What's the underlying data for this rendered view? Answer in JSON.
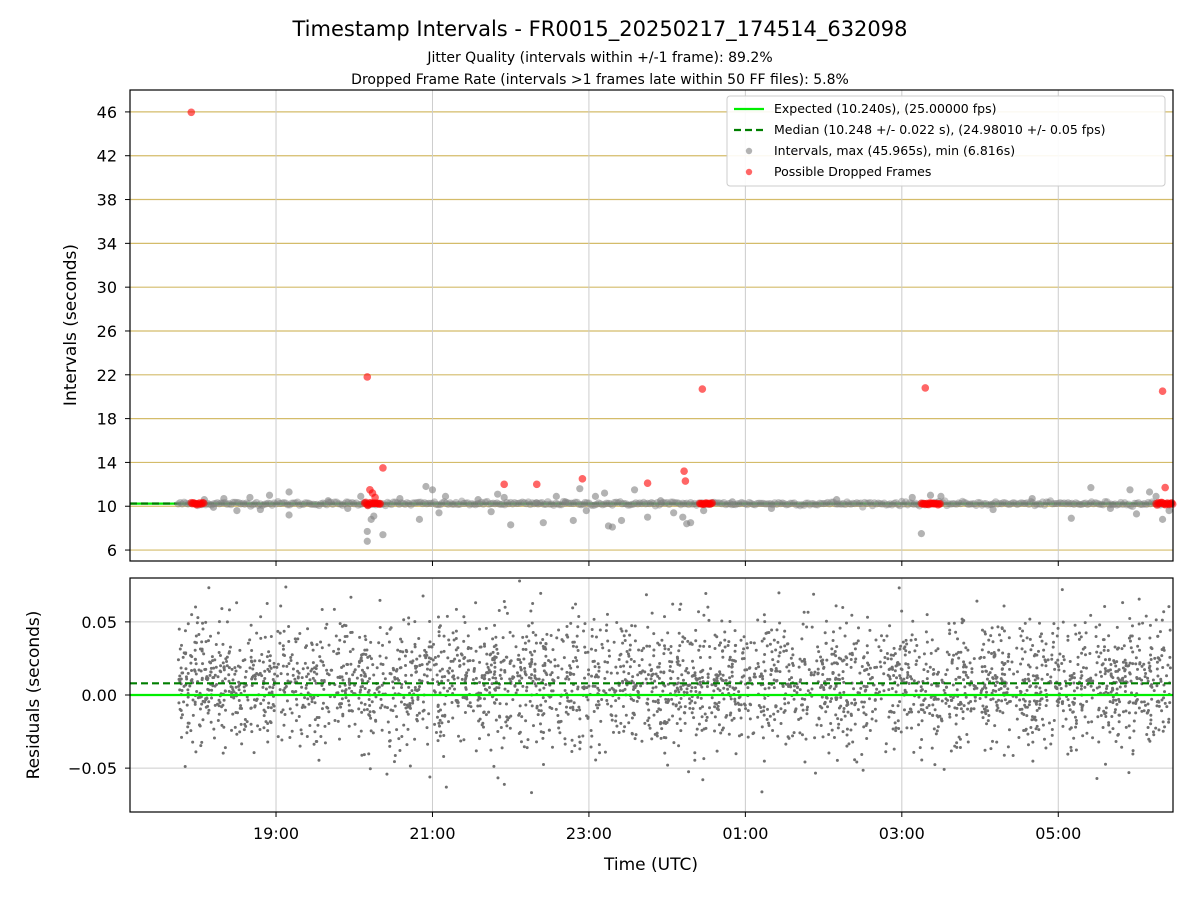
{
  "figure": {
    "title": "Timestamp Intervals - FR0015_20250217_174514_632098",
    "subtitle_1": "Jitter Quality (intervals within +/-1 frame): 89.2%",
    "subtitle_2": "Dropped Frame Rate (intervals >1 frames late within 50 FF files): 5.8%"
  },
  "chart_data": [
    {
      "type": "scatter",
      "name_hint": "top",
      "ylabel": "Intervals (seconds)",
      "xlabel": "",
      "xlim": [
        "17:08",
        "06:28"
      ],
      "ylim": [
        5,
        48
      ],
      "yticks": [
        6,
        10,
        14,
        18,
        22,
        26,
        30,
        34,
        38,
        42,
        46
      ],
      "xticks": [
        "19:00",
        "21:00",
        "23:00",
        "01:00",
        "03:00",
        "05:00"
      ],
      "grid": true,
      "legend_position": "top-right",
      "lines": [
        {
          "name": "Expected (10.240s), (25.00000 fps)",
          "y": 10.24,
          "color": "#00ee00",
          "style": "solid"
        },
        {
          "name": "Median (10.248 +/- 0.022 s), (24.98010 +/- 0.05 fps)",
          "y": 10.248,
          "color": "#007f00",
          "style": "dashed"
        }
      ],
      "series": [
        {
          "name": "Intervals, max (45.965s), min (6.816s)",
          "color": "#808080",
          "data_start": "17:45",
          "data_end": "06:28",
          "baseline": 10.24,
          "points": [
            [
              "18:05",
              10.6
            ],
            [
              "18:12",
              9.9
            ],
            [
              "18:20",
              10.7
            ],
            [
              "18:30",
              9.6
            ],
            [
              "18:40",
              10.8
            ],
            [
              "18:48",
              9.7
            ],
            [
              "18:55",
              11.0
            ],
            [
              "19:10",
              11.3
            ],
            [
              "19:10",
              9.2
            ],
            [
              "19:40",
              10.5
            ],
            [
              "19:55",
              9.8
            ],
            [
              "20:05",
              10.9
            ],
            [
              "20:10",
              7.7
            ],
            [
              "20:10",
              6.8
            ],
            [
              "20:13",
              8.8
            ],
            [
              "20:15",
              9.1
            ],
            [
              "20:22",
              7.4
            ],
            [
              "20:35",
              10.7
            ],
            [
              "20:50",
              8.8
            ],
            [
              "20:55",
              11.8
            ],
            [
              "21:00",
              11.5
            ],
            [
              "21:05",
              9.4
            ],
            [
              "21:10",
              10.9
            ],
            [
              "21:35",
              10.6
            ],
            [
              "21:45",
              9.5
            ],
            [
              "21:50",
              11.1
            ],
            [
              "21:55",
              10.8
            ],
            [
              "22:00",
              8.3
            ],
            [
              "22:20",
              10.3
            ],
            [
              "22:25",
              8.5
            ],
            [
              "22:35",
              10.9
            ],
            [
              "22:42",
              10.4
            ],
            [
              "22:48",
              8.7
            ],
            [
              "22:53",
              11.6
            ],
            [
              "22:58",
              9.6
            ],
            [
              "23:05",
              10.9
            ],
            [
              "23:12",
              11.2
            ],
            [
              "23:15",
              8.2
            ],
            [
              "23:18",
              8.1
            ],
            [
              "23:25",
              8.7
            ],
            [
              "23:35",
              11.5
            ],
            [
              "23:45",
              9.0
            ],
            [
              "23:55",
              10.5
            ],
            [
              "00:05",
              9.4
            ],
            [
              "00:12",
              9.0
            ],
            [
              "00:15",
              8.4
            ],
            [
              "00:18",
              8.5
            ],
            [
              "00:28",
              9.6
            ],
            [
              "00:50",
              10.4
            ],
            [
              "01:20",
              9.8
            ],
            [
              "02:10",
              10.6
            ],
            [
              "03:08",
              10.8
            ],
            [
              "03:15",
              7.5
            ],
            [
              "03:22",
              11.0
            ],
            [
              "03:30",
              10.9
            ],
            [
              "04:10",
              9.7
            ],
            [
              "04:40",
              10.7
            ],
            [
              "05:10",
              8.9
            ],
            [
              "05:25",
              11.7
            ],
            [
              "05:40",
              9.8
            ],
            [
              "05:55",
              11.5
            ],
            [
              "06:00",
              9.3
            ],
            [
              "06:10",
              11.3
            ],
            [
              "06:15",
              10.9
            ],
            [
              "06:20",
              8.8
            ],
            [
              "06:25",
              9.6
            ]
          ]
        },
        {
          "name": "Possible Dropped Frames",
          "color": "#ff0000",
          "points": [
            [
              "17:55",
              45.965
            ],
            [
              "20:10",
              21.8
            ],
            [
              "20:12",
              11.5
            ],
            [
              "20:14",
              11.2
            ],
            [
              "20:16",
              10.8
            ],
            [
              "20:22",
              13.5
            ],
            [
              "21:55",
              12.0
            ],
            [
              "22:20",
              12.0
            ],
            [
              "22:55",
              12.5
            ],
            [
              "23:45",
              12.1
            ],
            [
              "00:13",
              13.2
            ],
            [
              "00:14",
              12.3
            ],
            [
              "00:27",
              20.7
            ],
            [
              "03:18",
              20.8
            ],
            [
              "06:20",
              20.5
            ],
            [
              "06:22",
              11.7
            ]
          ],
          "clusters": [
            {
              "from": "17:55",
              "to": "18:05",
              "y": 10.24
            },
            {
              "from": "20:08",
              "to": "20:20",
              "y": 10.24
            },
            {
              "from": "00:25",
              "to": "00:35",
              "y": 10.24
            },
            {
              "from": "03:15",
              "to": "03:30",
              "y": 10.24
            },
            {
              "from": "06:15",
              "to": "06:28",
              "y": 10.24
            }
          ]
        }
      ]
    },
    {
      "type": "scatter",
      "name_hint": "bottom",
      "ylabel": "Residuals (seconds)",
      "xlabel": "Time (UTC)",
      "xlim": [
        "17:08",
        "06:28"
      ],
      "ylim": [
        -0.08,
        0.08
      ],
      "yticks": [
        -0.05,
        0.0,
        0.05
      ],
      "ytick_labels": [
        "−0.05",
        "0.00",
        "0.05"
      ],
      "xticks": [
        "19:00",
        "21:00",
        "23:00",
        "01:00",
        "03:00",
        "05:00"
      ],
      "grid": true,
      "lines": [
        {
          "y": 0.0,
          "color": "#00ee00",
          "style": "solid"
        },
        {
          "y": 0.008,
          "color": "#007f00",
          "style": "dashed"
        }
      ],
      "series": [
        {
          "color": "#707070",
          "data_start": "17:45",
          "data_end": "06:28",
          "center": 0.008,
          "spread": 0.022,
          "count": 3200
        }
      ]
    }
  ]
}
